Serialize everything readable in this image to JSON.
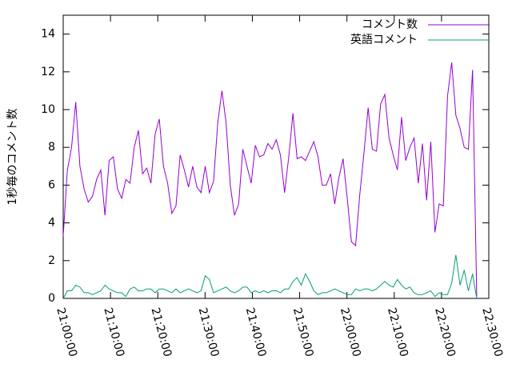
{
  "chart_data": {
    "type": "line",
    "ylabel": "1秒毎のコメント数",
    "x": [
      "21:00:00",
      "21:00:53",
      "21:01:46",
      "21:02:39",
      "21:03:32",
      "21:04:25",
      "21:05:18",
      "21:06:11",
      "21:07:04",
      "21:07:57",
      "21:08:50",
      "21:09:43",
      "21:10:36",
      "21:11:29",
      "21:12:22",
      "21:13:15",
      "21:14:08",
      "21:15:01",
      "21:15:54",
      "21:16:47",
      "21:17:40",
      "21:18:33",
      "21:19:26",
      "21:20:19",
      "21:21:12",
      "21:22:05",
      "21:22:58",
      "21:23:51",
      "21:24:44",
      "21:25:37",
      "21:26:30",
      "21:27:23",
      "21:28:16",
      "21:29:09",
      "21:30:02",
      "21:30:55",
      "21:31:48",
      "21:32:41",
      "21:33:34",
      "21:34:27",
      "21:35:20",
      "21:36:13",
      "21:37:06",
      "21:37:59",
      "21:38:52",
      "21:39:45",
      "21:40:38",
      "21:41:31",
      "21:42:24",
      "21:43:17",
      "21:44:10",
      "21:45:03",
      "21:45:56",
      "21:46:49",
      "21:47:42",
      "21:48:35",
      "21:49:28",
      "21:50:21",
      "21:51:14",
      "21:52:07",
      "21:53:00",
      "21:53:53",
      "21:54:46",
      "21:55:39",
      "21:56:32",
      "21:57:25",
      "21:58:18",
      "21:59:11",
      "22:00:04",
      "22:00:57",
      "22:01:50",
      "22:02:43",
      "22:03:36",
      "22:04:29",
      "22:05:22",
      "22:06:15",
      "22:07:08",
      "22:08:01",
      "22:08:54",
      "22:09:47",
      "22:10:40",
      "22:11:33",
      "22:12:26",
      "22:13:19",
      "22:14:12",
      "22:15:05",
      "22:15:58",
      "22:16:51",
      "22:17:44",
      "22:18:37",
      "22:19:30",
      "22:20:23",
      "22:21:16",
      "22:22:09",
      "22:23:02",
      "22:23:55",
      "22:24:48",
      "22:25:41",
      "22:26:34",
      "22:27:27"
    ],
    "series": [
      {
        "name": "コメント数",
        "color": "#9400d3",
        "values": [
          3.3,
          6.8,
          8,
          10.4,
          7.0,
          5.8,
          5.1,
          5.4,
          6.3,
          6.8,
          4.4,
          7.3,
          7.5,
          5.8,
          5.3,
          6.3,
          6.1,
          8.0,
          8.9,
          6.6,
          6.9,
          6.1,
          8.7,
          9.5,
          7.0,
          6.1,
          4.5,
          4.9,
          7.6,
          6.8,
          5.9,
          7.0,
          5.9,
          5.6,
          7.0,
          5.6,
          6.2,
          9.3,
          11.0,
          9.3,
          6.0,
          4.4,
          5.0,
          7.9,
          7.0,
          6.1,
          8.1,
          7.5,
          7.6,
          8.2,
          7.9,
          8.4,
          7.6,
          5.6,
          7.5,
          9.8,
          7.4,
          7.5,
          7.3,
          7.8,
          8.3,
          7.5,
          6.0,
          6.0,
          6.6,
          5.0,
          6.4,
          7.4,
          5.3,
          3.0,
          2.8,
          5.5,
          7.7,
          10.1,
          7.9,
          7.8,
          10.3,
          10.8,
          8.5,
          7.6,
          6.8,
          9.6,
          7.3,
          8.0,
          8.5,
          6.1,
          8.2,
          5.2,
          8.3,
          3.5,
          5.0,
          4.9,
          10.7,
          12.5,
          9.7,
          9.0,
          8.0,
          7.9,
          12.1,
          0.1
        ]
      },
      {
        "name": "英語コメント",
        "color": "#009e73",
        "values": [
          0.0,
          0.4,
          0.4,
          0.7,
          0.6,
          0.3,
          0.3,
          0.2,
          0.3,
          0.4,
          0.7,
          0.5,
          0.4,
          0.3,
          0.3,
          0.1,
          0.5,
          0.6,
          0.4,
          0.4,
          0.5,
          0.5,
          0.3,
          0.5,
          0.5,
          0.4,
          0.3,
          0.5,
          0.3,
          0.4,
          0.5,
          0.4,
          0.3,
          0.4,
          1.2,
          1.0,
          0.3,
          0.4,
          0.5,
          0.6,
          0.4,
          0.3,
          0.4,
          0.6,
          0.6,
          0.3,
          0.4,
          0.3,
          0.4,
          0.3,
          0.4,
          0.4,
          0.3,
          0.5,
          0.5,
          0.9,
          1.1,
          0.7,
          1.3,
          0.9,
          0.4,
          0.2,
          0.3,
          0.3,
          0.4,
          0.5,
          0.4,
          0.3,
          0.2,
          0.2,
          0.5,
          0.4,
          0.5,
          0.5,
          0.4,
          0.5,
          0.7,
          0.9,
          0.7,
          0.6,
          1.0,
          0.7,
          0.5,
          0.6,
          0.3,
          0.2,
          0.2,
          0.3,
          0.4,
          0.1,
          0.3,
          0.2,
          0.2,
          0.8,
          2.3,
          0.7,
          1.5,
          0.4,
          1.3,
          0.0
        ]
      }
    ],
    "xlim": [
      "21:00:00",
      "22:30:00"
    ],
    "xticks": [
      "21:00:00",
      "21:10:00",
      "21:20:00",
      "21:30:00",
      "21:40:00",
      "21:50:00",
      "22:00:00",
      "22:10:00",
      "22:20:00",
      "22:30:00"
    ],
    "ylim": [
      0,
      15
    ],
    "yticks": [
      0,
      2,
      4,
      6,
      8,
      10,
      12,
      14
    ],
    "legend": "upper right"
  }
}
